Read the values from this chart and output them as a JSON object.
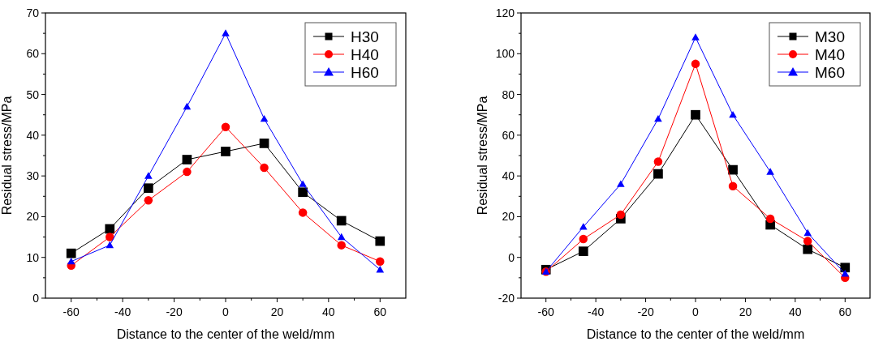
{
  "chart_data": [
    {
      "type": "line",
      "xlabel": "Distance to the center of the weld/mm",
      "ylabel": "Residual stress/MPa",
      "x": [
        -60,
        -45,
        -30,
        -15,
        0,
        15,
        30,
        45,
        60
      ],
      "xlim": [
        -70,
        70
      ],
      "xticks": [
        -60,
        -40,
        -20,
        0,
        20,
        40,
        60
      ],
      "ylim": [
        0,
        70
      ],
      "yticks": [
        0,
        10,
        20,
        30,
        40,
        50,
        60,
        70
      ],
      "grid": false,
      "legend": "top right",
      "series": [
        {
          "name": "H30",
          "color": "#000000",
          "marker": "square",
          "values": [
            11,
            17,
            27,
            34,
            36,
            38,
            26,
            19,
            14
          ]
        },
        {
          "name": "H40",
          "color": "#ff0000",
          "marker": "circle",
          "values": [
            8,
            15,
            24,
            31,
            42,
            32,
            21,
            13,
            9
          ]
        },
        {
          "name": "H60",
          "color": "#0000ff",
          "marker": "triangle",
          "values": [
            9,
            13,
            30,
            47,
            65,
            44,
            28,
            15,
            7
          ]
        }
      ]
    },
    {
      "type": "line",
      "xlabel": "Distance to the center of the weld/mm",
      "ylabel": "Residual stress/MPa",
      "x": [
        -60,
        -45,
        -30,
        -15,
        0,
        15,
        30,
        45,
        60
      ],
      "xlim": [
        -70,
        70
      ],
      "xticks": [
        -60,
        -40,
        -20,
        0,
        20,
        40,
        60
      ],
      "ylim": [
        -20,
        120
      ],
      "yticks": [
        -20,
        0,
        20,
        40,
        60,
        80,
        100,
        120
      ],
      "grid": false,
      "legend": "top right",
      "series": [
        {
          "name": "M30",
          "color": "#000000",
          "marker": "square",
          "values": [
            -6,
            3,
            19,
            41,
            70,
            43,
            16,
            4,
            -5
          ]
        },
        {
          "name": "M40",
          "color": "#ff0000",
          "marker": "circle",
          "values": [
            -7,
            9,
            21,
            47,
            95,
            35,
            19,
            8,
            -10
          ]
        },
        {
          "name": "M60",
          "color": "#0000ff",
          "marker": "triangle",
          "values": [
            -7,
            15,
            36,
            68,
            108,
            70,
            42,
            12,
            -8
          ]
        }
      ]
    }
  ]
}
